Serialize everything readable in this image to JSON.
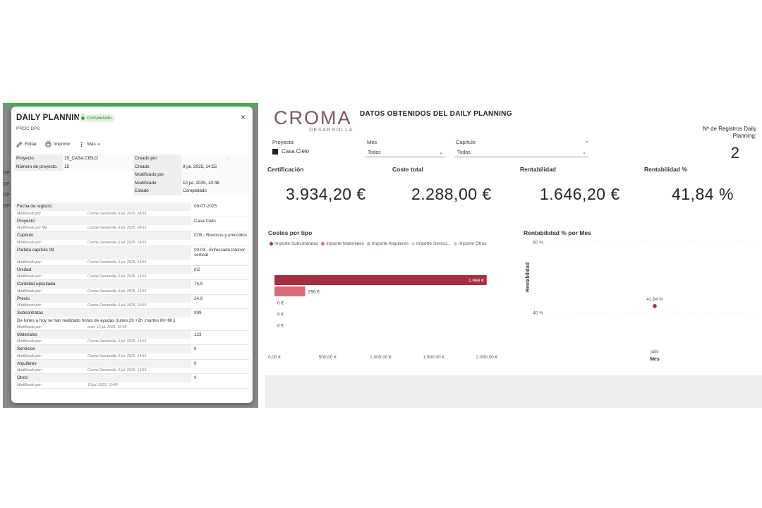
{
  "modal": {
    "title": "DAILY PLANNING",
    "status": "Completado",
    "subtitle": "PROC.DP8",
    "close": "×",
    "toolbar": {
      "edit": "Editar",
      "print": "Imprimir",
      "more": "Más"
    },
    "background_stubs": [
      "DP",
      "DP",
      "DP",
      "DP"
    ],
    "meta": {
      "proyecto_label": "Proyecto",
      "proyecto_value": "15_CASA CIELO",
      "numero_label": "Número de proyecto.",
      "numero_value": "15",
      "creado_por_label": "Creado por",
      "creado_por_value": "",
      "creado_label": "Creado",
      "creado_value": "9 jul. 2025, 14:55",
      "modificado_por_label": "Modificado por",
      "modificado_por_value": "",
      "modificado_label": "Modificado",
      "modificado_value": "10 jul. 2025, 10:48",
      "estado_label": "Estado",
      "estado_value": "Completado"
    },
    "fields": [
      {
        "label": "Fecha de registro:",
        "value": "09-07-2025",
        "mod_who": "Modificado por:",
        "mod_when": "Croma Desarrolla, 9 jul. 2025, 14:55"
      },
      {
        "label": "Proyecto:",
        "value": "Casa Cielo",
        "mod_who": "Modificado por Ma",
        "mod_when": "Croma Desarrolla, 9 jul. 2025, 14:55"
      },
      {
        "label": "Capítulo",
        "value": "C09 - Revocos y enlucidos",
        "mod_who": "Modificado por:",
        "mod_when": "Croma Desarrolla, 9 jul. 2025, 14:55"
      },
      {
        "label": "Partida capítulo 09",
        "value": "09.03 - Enfoscado interior vertical",
        "mod_who": "Modificado por:",
        "mod_when": "Croma Desarrolla, 9 jul. 2025, 14:55"
      },
      {
        "label": "Unidad",
        "value": "m2",
        "mod_who": "Modificado por:",
        "mod_when": "Croma Desarrolla, 9 jul. 2025, 14:55"
      },
      {
        "label": "Cantidad ejecutada",
        "value": "74,9",
        "mod_who": "Modificado por:",
        "mod_when": "Croma Desarrolla, 9 jul. 2025, 14:55"
      },
      {
        "label": "Precio",
        "value": "24,9",
        "mod_who": "Modificado por:",
        "mod_when": "Croma Desarrolla, 9 jul. 2025, 14:55"
      },
      {
        "label": "Subcontratas",
        "value": "999",
        "note": "De lunes a hoy se han realizado horas de ayudas (lunes 2h +2h ,martes 6h+6h,)",
        "mod_who": "Modificado por:",
        "mod_when": "onio, 10 jul. 2025, 10:48"
      },
      {
        "label": "Materiales",
        "value": "123",
        "mod_who": "Modificado por:",
        "mod_when": "Croma Desarrolla, 9 jul. 2025, 14:55"
      },
      {
        "label": "Servicios",
        "value": "0",
        "mod_who": "Modificado por:",
        "mod_when": "Croma Desarrolla, 9 jul. 2025, 14:55"
      },
      {
        "label": "Alquileres",
        "value": "0",
        "mod_who": "Modificado por:",
        "mod_when": "Croma Desarrolla, 9 jul. 2025, 14:55"
      },
      {
        "label": "Otros",
        "value": "0",
        "mod_who": "Modificado por:",
        "mod_when": "10 jul. 2025, 10:48"
      }
    ]
  },
  "dashboard": {
    "logo_word": "CROMA",
    "logo_sub": "DESARROLLA",
    "title": "DATOS OBTENIDOS DEL DAILY PLANNING",
    "slicers": {
      "proyecto_label": "Proyecto:",
      "proyecto_value": "Casa Cielo",
      "mes_label": "Mes",
      "mes_value": "Todas",
      "capitulo_label": "Capítulo",
      "capitulo_value": "Todas"
    },
    "registros_label": "Nº de Registros Daily Planning:",
    "registros_value": "2",
    "kpis": [
      {
        "label": "Certificación",
        "value": "3.934,20 €"
      },
      {
        "label": "Coste total",
        "value": "2.288,00 €"
      },
      {
        "label": "Rentabilidad",
        "value": "1.646,20 €"
      },
      {
        "label": "Rentabilidad %",
        "value": "41,84 %"
      }
    ],
    "colors": {
      "brand": "#7a5a52",
      "subcontratas": "#a4303f",
      "materiales": "#d96b77",
      "alquileres": "#e8a0a9",
      "servicios": "#f0c2c8",
      "otros": "#c8c8c8",
      "point": "#a4303f"
    }
  },
  "chart_data": [
    {
      "type": "bar",
      "title": "Costes por tipo",
      "orientation": "horizontal",
      "series": [
        {
          "name": "Importe Subcontratas",
          "value": 1998,
          "label": "1.998 €"
        },
        {
          "name": "Importe Materiales",
          "value": 290,
          "label": "290 €"
        },
        {
          "name": "Importe Alquileres",
          "value": 0,
          "label": "0 €"
        },
        {
          "name": "Importe Servici...",
          "value": 0,
          "label": "0 €"
        },
        {
          "name": "Importe Otros",
          "value": 0,
          "label": "0 €"
        }
      ],
      "xlim": [
        0,
        2000
      ],
      "xticks": [
        "0,00 €",
        "500,00 €",
        "1.000,00 €",
        "1.500,00 €",
        "2.000,00 €"
      ],
      "legend": "top"
    },
    {
      "type": "scatter",
      "title": "Rentabilidad % por Mes",
      "xlabel": "Mes",
      "ylabel": "Rentabilidad",
      "categories": [
        "julio"
      ],
      "values": [
        41.84
      ],
      "point_label": "41,84 %",
      "ylim": [
        40,
        60
      ],
      "yticks": [
        "60 %",
        "40 %"
      ]
    }
  ]
}
